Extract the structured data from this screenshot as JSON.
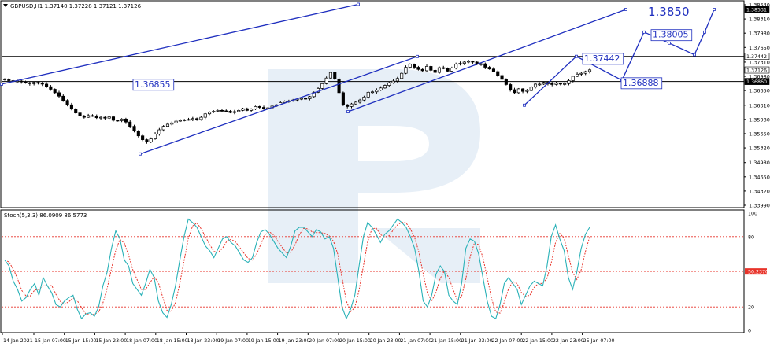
{
  "header": {
    "symbol_info": "GBPUSD,H1  1.37140 1.37228 1.37121 1.37126"
  },
  "stoch": {
    "label": "Stoch(5,3,3) 86.0909 86.5773",
    "axis": [
      "100",
      "80",
      "50.2370",
      "20",
      "0"
    ]
  },
  "colors": {
    "candle_line": "#000000",
    "pattern_line": "#1f2fbf",
    "stoch_main": "#2ab2b8",
    "stoch_signal": "#e8332a",
    "level_line": "#e8332a",
    "current_price_box": "#000000",
    "watermark": "#d4e2f1"
  },
  "chart_data": [
    {
      "type": "candlestick",
      "title": "",
      "ylim": [
        1.3399,
        1.3864
      ],
      "price_axis_ticks": [
        "1.38640",
        "1.38310",
        "1.37980",
        "1.37650",
        "1.37310",
        "1.36980",
        "1.36650",
        "1.36310",
        "1.35980",
        "1.35650",
        "1.35320",
        "1.34980",
        "1.34650",
        "1.34320",
        "1.33990"
      ],
      "price_axis_flags": [
        "1.38531",
        "1.37442",
        "1.37126",
        "1.36860"
      ],
      "horizontal_levels": [
        1.37442,
        1.3686
      ],
      "annotations": [
        "1.3850",
        "1.38005",
        "1.37442",
        "1.36855",
        "1.36888"
      ],
      "x_tick_labels": [
        "14 Jan 2021",
        "15 Jan 07:00",
        "15 Jan 15:00",
        "15 Jan 23:00",
        "18 Jan 07:00",
        "18 Jan 15:00",
        "18 Jan 23:00",
        "19 Jan 07:00",
        "19 Jan 15:00",
        "19 Jan 23:00",
        "20 Jan 07:00",
        "20 Jan 15:00",
        "20 Jan 23:00",
        "21 Jan 07:00",
        "21 Jan 15:00",
        "21 Jan 23:00",
        "22 Jan 07:00",
        "22 Jan 15:00",
        "22 Jan 23:00",
        "25 Jan 07:00"
      ],
      "close": [
        1.369,
        1.3688,
        1.3686,
        1.3687,
        1.3685,
        1.3683,
        1.3681,
        1.3684,
        1.3682,
        1.368,
        1.3674,
        1.3668,
        1.366,
        1.3652,
        1.3642,
        1.3632,
        1.3622,
        1.3613,
        1.3606,
        1.3603,
        1.3607,
        1.3606,
        1.3602,
        1.3603,
        1.3601,
        1.3604,
        1.3596,
        1.3595,
        1.3599,
        1.3592,
        1.3582,
        1.3571,
        1.356,
        1.3551,
        1.3546,
        1.3553,
        1.3564,
        1.3574,
        1.3582,
        1.3587,
        1.359,
        1.3594,
        1.3596,
        1.3597,
        1.3598,
        1.36,
        1.3598,
        1.3603,
        1.3611,
        1.3615,
        1.3617,
        1.3619,
        1.3618,
        1.3617,
        1.3614,
        1.3616,
        1.3619,
        1.3623,
        1.3619,
        1.3622,
        1.3628,
        1.3626,
        1.3623,
        1.3625,
        1.3629,
        1.3632,
        1.3637,
        1.364,
        1.3641,
        1.3643,
        1.3645,
        1.3647,
        1.3646,
        1.3651,
        1.3661,
        1.367,
        1.3681,
        1.3694,
        1.3707,
        1.3692,
        1.366,
        1.3632,
        1.3628,
        1.3634,
        1.3638,
        1.3643,
        1.365,
        1.3661,
        1.3662,
        1.3666,
        1.3671,
        1.3677,
        1.3683,
        1.3687,
        1.3693,
        1.3705,
        1.3719,
        1.3726,
        1.3719,
        1.3714,
        1.3711,
        1.3721,
        1.3712,
        1.3707,
        1.3718,
        1.3716,
        1.371,
        1.3717,
        1.3726,
        1.3728,
        1.3731,
        1.3733,
        1.3731,
        1.3726,
        1.3727,
        1.3719,
        1.3715,
        1.3709,
        1.37,
        1.3691,
        1.3679,
        1.3667,
        1.366,
        1.3669,
        1.3663,
        1.3665,
        1.3673,
        1.368,
        1.368,
        1.3684,
        1.3681,
        1.3679,
        1.3682,
        1.368,
        1.3681,
        1.3688,
        1.3698,
        1.3703,
        1.3705,
        1.3709,
        1.3713
      ],
      "stochastic": {
        "levels": [
          80,
          50.237,
          20
        ],
        "main": [
          60,
          55,
          42,
          35,
          25,
          28,
          35,
          40,
          30,
          45,
          38,
          32,
          22,
          20,
          25,
          28,
          30,
          18,
          10,
          14,
          15,
          12,
          20,
          38,
          50,
          70,
          85,
          78,
          60,
          55,
          40,
          35,
          30,
          40,
          52,
          45,
          25,
          15,
          11,
          22,
          38,
          60,
          80,
          95,
          92,
          88,
          80,
          72,
          68,
          62,
          70,
          78,
          80,
          75,
          72,
          66,
          60,
          58,
          62,
          75,
          84,
          86,
          82,
          76,
          70,
          66,
          62,
          72,
          85,
          88,
          88,
          84,
          80,
          86,
          84,
          78,
          80,
          70,
          45,
          20,
          10,
          18,
          30,
          55,
          80,
          92,
          88,
          82,
          75,
          82,
          85,
          90,
          95,
          92,
          88,
          80,
          70,
          50,
          25,
          20,
          30,
          48,
          55,
          50,
          30,
          25,
          22,
          40,
          70,
          78,
          76,
          65,
          45,
          25,
          12,
          10,
          22,
          40,
          45,
          40,
          35,
          22,
          30,
          38,
          42,
          40,
          38,
          55,
          80,
          90,
          78,
          68,
          45,
          35,
          50,
          70,
          82,
          88
        ]
      }
    }
  ]
}
